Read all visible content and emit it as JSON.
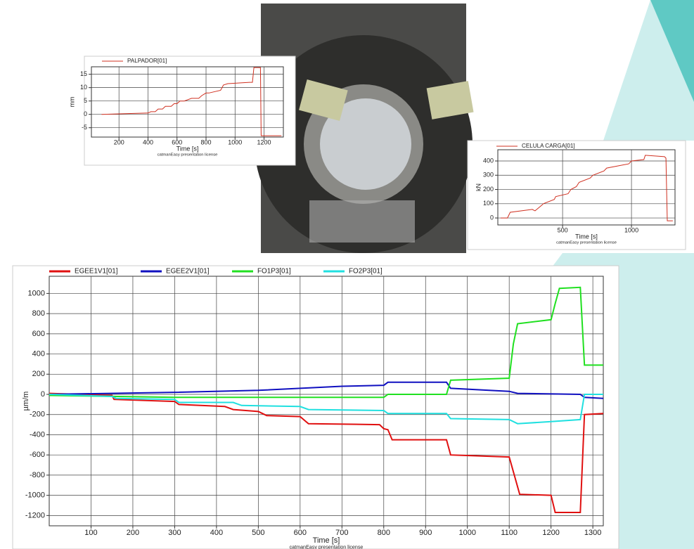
{
  "chart_data": [
    {
      "type": "line",
      "xlabel": "Time  [s]",
      "ylabel": "mm",
      "note": "catmanEasy presentation license",
      "xlim": [
        10,
        1333
      ],
      "ylim": [
        -8.5,
        17.8
      ],
      "xticks": [
        200,
        400,
        600,
        800,
        1000,
        1200
      ],
      "yticks": [
        -5,
        0,
        5,
        10,
        15
      ],
      "grid": true,
      "series": [
        {
          "name": "PALPADOR[01]",
          "color": "#d03020",
          "x": [
            80,
            400,
            420,
            450,
            470,
            500,
            520,
            560,
            580,
            600,
            620,
            650,
            700,
            750,
            770,
            800,
            820,
            900,
            920,
            950,
            1100,
            1120,
            1130,
            1175,
            1180,
            1320
          ],
          "values": [
            0,
            0.5,
            1,
            1,
            2,
            2,
            3,
            3,
            4,
            4,
            5,
            5,
            6,
            6,
            7,
            8,
            8,
            9,
            11,
            11.5,
            12,
            12,
            17.5,
            17.5,
            -8,
            -8
          ]
        }
      ]
    },
    {
      "type": "line",
      "xlabel": "Time  [s]",
      "ylabel": "kN",
      "note": "catmanEasy presentation license",
      "xlim": [
        30,
        1316
      ],
      "ylim": [
        -49,
        479
      ],
      "xticks": [
        500,
        1000
      ],
      "yticks": [
        0,
        100,
        200,
        300,
        400
      ],
      "grid": true,
      "series": [
        {
          "name": "CELULA CARGA[01]",
          "color": "#d03020",
          "x": [
            50,
            100,
            120,
            280,
            300,
            350,
            360,
            440,
            450,
            540,
            560,
            600,
            620,
            700,
            720,
            800,
            820,
            980,
            1000,
            1090,
            1100,
            1240,
            1250,
            1260,
            1300
          ],
          "values": [
            0,
            0,
            40,
            60,
            50,
            90,
            100,
            130,
            150,
            170,
            200,
            220,
            250,
            280,
            300,
            330,
            350,
            380,
            400,
            410,
            440,
            430,
            420,
            -20,
            -20
          ]
        }
      ]
    },
    {
      "type": "line",
      "xlabel": "Time  [s]",
      "ylabel": "µm/m",
      "note": "catmanEasy presentation license",
      "xlim": [
        0,
        1325
      ],
      "ylim": [
        -1302,
        1170
      ],
      "xticks": [
        100,
        200,
        300,
        400,
        500,
        600,
        700,
        800,
        900,
        1000,
        1100,
        1200,
        1300
      ],
      "yticks": [
        -1200,
        -1000,
        -800,
        -600,
        -400,
        -200,
        0,
        200,
        400,
        600,
        800,
        1000
      ],
      "grid": true,
      "series": [
        {
          "name": "EGEE1V1[01]",
          "color": "#e01010",
          "x": [
            0,
            150,
            155,
            300,
            310,
            420,
            440,
            500,
            520,
            600,
            620,
            790,
            800,
            810,
            820,
            950,
            960,
            1100,
            1125,
            1200,
            1210,
            1270,
            1280,
            1325
          ],
          "values": [
            10,
            -10,
            -50,
            -70,
            -100,
            -120,
            -150,
            -170,
            -210,
            -220,
            -290,
            -300,
            -340,
            -350,
            -450,
            -450,
            -600,
            -620,
            -990,
            -1000,
            -1170,
            -1170,
            -200,
            -190
          ]
        },
        {
          "name": "EGEE2V1[01]",
          "color": "#1010c0",
          "x": [
            0,
            300,
            500,
            700,
            800,
            810,
            950,
            960,
            1100,
            1120,
            1270,
            1280,
            1325
          ],
          "values": [
            0,
            20,
            40,
            80,
            90,
            120,
            120,
            60,
            30,
            10,
            0,
            -30,
            -40
          ]
        },
        {
          "name": "FO1P3[01]",
          "color": "#20e020",
          "x": [
            0,
            300,
            800,
            810,
            950,
            960,
            1100,
            1110,
            1120,
            1200,
            1210,
            1220,
            1270,
            1280,
            1325
          ],
          "values": [
            -10,
            -30,
            -30,
            0,
            0,
            140,
            160,
            500,
            700,
            740,
            900,
            1050,
            1060,
            290,
            290
          ]
        },
        {
          "name": "FO2P3[01]",
          "color": "#20e0e0",
          "x": [
            0,
            150,
            160,
            300,
            310,
            440,
            460,
            600,
            620,
            800,
            810,
            950,
            960,
            1100,
            1120,
            1200,
            1270,
            1280,
            1325
          ],
          "values": [
            0,
            -20,
            -40,
            -50,
            -80,
            -80,
            -110,
            -120,
            -150,
            -160,
            -190,
            -190,
            -240,
            -250,
            -290,
            -270,
            -250,
            0,
            0
          ]
        }
      ]
    }
  ]
}
